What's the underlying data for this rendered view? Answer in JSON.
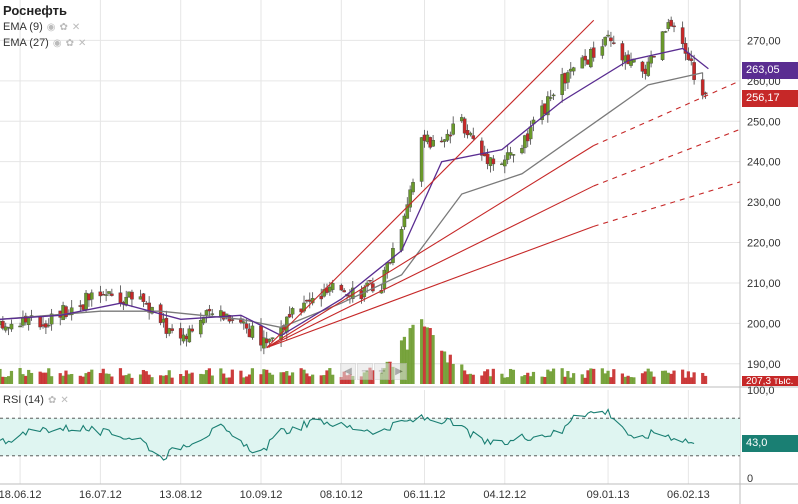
{
  "ticker": "Роснефть",
  "indicators": [
    {
      "label": "EMA (9)",
      "color": "#5a2d91"
    },
    {
      "label": "EMA (27)",
      "color": "#7a7a7a"
    }
  ],
  "rsi_label": "RSI (14)",
  "icons": {
    "visibility": "eye-icon",
    "settings": "gear-icon",
    "remove": "close-icon"
  },
  "price_tags": {
    "upper": "263,05",
    "current": "256,17",
    "volume": "207,3 тыс."
  },
  "rsi_value": "43,0",
  "colors": {
    "up": "#6a9a2a",
    "down": "#c62828",
    "ema9": "#5a2d91",
    "ema27": "#7a7a7a",
    "trend": "#c62828",
    "rsi_line": "#1a7f73",
    "rsi_band": "#dff5f1",
    "tag_upper": "#5a2d91",
    "tag_current": "#c62828",
    "tag_rsi": "#1a7f73"
  },
  "chart_data": [
    {
      "type": "candlestick",
      "title": "Роснефть",
      "ylim": [
        185,
        280
      ],
      "y_ticks": [
        "190,00",
        "200,00",
        "210,00",
        "220,00",
        "230,00",
        "240,00",
        "250,00",
        "260,00",
        "270,00"
      ],
      "x_ticks": [
        "18.06.12",
        "16.07.12",
        "13.08.12",
        "10.09.12",
        "08.10.12",
        "06.11.12",
        "04.12.12",
        "09.01.13",
        "06.02.13"
      ],
      "x_range": [
        "2012-06-11",
        "2013-02-24"
      ],
      "price_path": [
        [
          "2012-06-11",
          199
        ],
        [
          "2012-06-18",
          201
        ],
        [
          "2012-06-25",
          200
        ],
        [
          "2012-07-02",
          203
        ],
        [
          "2012-07-09",
          205
        ],
        [
          "2012-07-16",
          207
        ],
        [
          "2012-07-23",
          206
        ],
        [
          "2012-07-30",
          207
        ],
        [
          "2012-08-06",
          200
        ],
        [
          "2012-08-13",
          197
        ],
        [
          "2012-08-20",
          201
        ],
        [
          "2012-08-27",
          203
        ],
        [
          "2012-09-03",
          201
        ],
        [
          "2012-09-10",
          195
        ],
        [
          "2012-09-17",
          199
        ],
        [
          "2012-09-24",
          204
        ],
        [
          "2012-10-01",
          207
        ],
        [
          "2012-10-08",
          209
        ],
        [
          "2012-10-15",
          208
        ],
        [
          "2012-10-22",
          210
        ],
        [
          "2012-10-29",
          225
        ],
        [
          "2012-11-05",
          245
        ],
        [
          "2012-11-12",
          244
        ],
        [
          "2012-11-19",
          250
        ],
        [
          "2012-11-26",
          242
        ],
        [
          "2012-12-03",
          240
        ],
        [
          "2012-12-10",
          244
        ],
        [
          "2012-12-17",
          252
        ],
        [
          "2012-12-24",
          260
        ],
        [
          "2013-01-09",
          270
        ],
        [
          "2013-01-16",
          264
        ],
        [
          "2013-01-23",
          263
        ],
        [
          "2013-01-30",
          274
        ],
        [
          "2013-02-06",
          266
        ],
        [
          "2013-02-11",
          256
        ]
      ],
      "ema9_series": [
        [
          "2012-06-11",
          201
        ],
        [
          "2012-07-02",
          202
        ],
        [
          "2012-07-23",
          205
        ],
        [
          "2012-08-13",
          201
        ],
        [
          "2012-09-03",
          202
        ],
        [
          "2012-09-17",
          197
        ],
        [
          "2012-10-08",
          206
        ],
        [
          "2012-10-29",
          218
        ],
        [
          "2012-11-12",
          240
        ],
        [
          "2012-12-03",
          243
        ],
        [
          "2012-12-24",
          255
        ],
        [
          "2013-01-16",
          265
        ],
        [
          "2013-02-04",
          268
        ],
        [
          "2013-02-13",
          263
        ]
      ],
      "ema27_series": [
        [
          "2012-06-11",
          201
        ],
        [
          "2012-07-16",
          203
        ],
        [
          "2012-08-06",
          203
        ],
        [
          "2012-09-03",
          201
        ],
        [
          "2012-09-17",
          199
        ],
        [
          "2012-10-08",
          205
        ],
        [
          "2012-10-29",
          212
        ],
        [
          "2012-11-19",
          232
        ],
        [
          "2012-12-10",
          237
        ],
        [
          "2013-01-09",
          252
        ],
        [
          "2013-01-23",
          259
        ],
        [
          "2013-02-11",
          262
        ]
      ],
      "trendlines": [
        {
          "from": [
            "2012-09-12",
            194
          ],
          "to": [
            "2013-01-04",
            275
          ],
          "style": "solid"
        },
        {
          "from": [
            "2012-09-12",
            194
          ],
          "to": [
            "2013-01-04",
            244
          ],
          "extend_to": [
            "2013-02-24",
            260
          ],
          "style": "dashed-extension"
        },
        {
          "from": [
            "2012-09-12",
            194
          ],
          "to": [
            "2013-01-04",
            234
          ],
          "extend_to": [
            "2013-02-24",
            248
          ],
          "style": "dashed-extension"
        },
        {
          "from": [
            "2012-09-12",
            194
          ],
          "to": [
            "2013-01-04",
            224
          ],
          "extend_to": [
            "2013-02-24",
            235
          ],
          "style": "dashed-extension"
        }
      ],
      "volume_note": "volume bars, green up / red down; peak near 2012-11-05"
    },
    {
      "type": "line",
      "title": "RSI (14)",
      "ylim": [
        0,
        100
      ],
      "y_ticks": [
        "0",
        "100,0"
      ],
      "levels": [
        30,
        70
      ],
      "series": [
        {
          "values": [
            [
              "2012-06-11",
              45
            ],
            [
              "2012-06-25",
              58
            ],
            [
              "2012-07-09",
              60
            ],
            [
              "2012-07-16",
              55
            ],
            [
              "2012-07-30",
              48
            ],
            [
              "2012-08-06",
              28
            ],
            [
              "2012-08-13",
              40
            ],
            [
              "2012-08-27",
              60
            ],
            [
              "2012-09-03",
              42
            ],
            [
              "2012-09-10",
              34
            ],
            [
              "2012-09-17",
              55
            ],
            [
              "2012-10-01",
              68
            ],
            [
              "2012-10-08",
              62
            ],
            [
              "2012-10-22",
              56
            ],
            [
              "2012-10-29",
              65
            ],
            [
              "2012-11-05",
              70
            ],
            [
              "2012-11-12",
              68
            ],
            [
              "2012-11-19",
              60
            ],
            [
              "2012-11-26",
              45
            ],
            [
              "2012-12-03",
              42
            ],
            [
              "2012-12-10",
              50
            ],
            [
              "2012-12-24",
              55
            ],
            [
              "2012-12-28",
              75
            ],
            [
              "2013-01-09",
              77
            ],
            [
              "2013-01-14",
              62
            ],
            [
              "2013-01-18",
              45
            ],
            [
              "2013-01-25",
              55
            ],
            [
              "2013-02-04",
              48
            ],
            [
              "2013-02-08",
              43
            ]
          ]
        }
      ]
    }
  ]
}
